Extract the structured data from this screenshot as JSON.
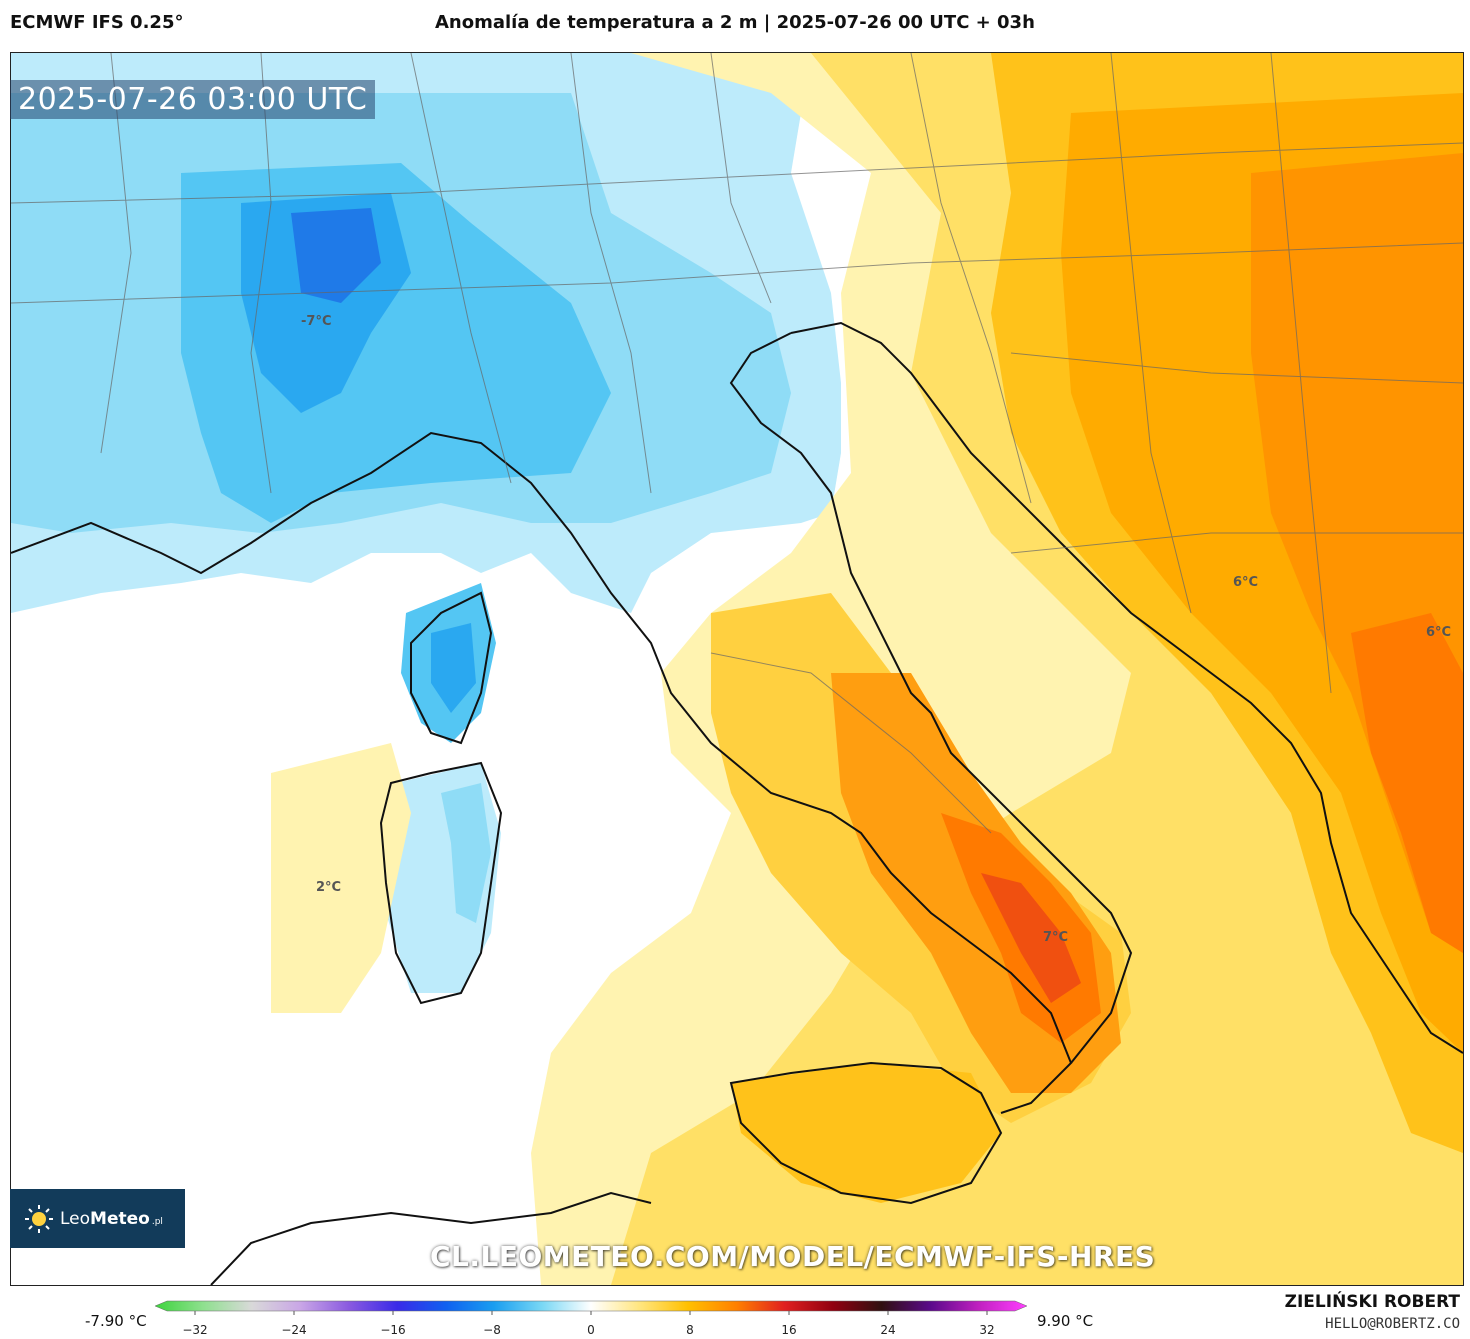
{
  "header": {
    "model": "ECMWF IFS 0.25°",
    "title": "Anomalía de temperatura a 2 m | 2025-07-26 00 UTC + 03h"
  },
  "map": {
    "valid_time": "2025-07-26 03:00 UTC",
    "labels": [
      "-7°C",
      "2°C",
      "6°C",
      "6°C",
      "7°C"
    ],
    "watermark": "CL.LEOMETEO.COM/MODEL/ECMWF-IFS-HRES",
    "logo": {
      "brand_light": "Leo",
      "brand_bold": "Meteo",
      "suffix": ".pl"
    }
  },
  "legend": {
    "min_label": "-7.90 °C",
    "max_label": "9.90 °C",
    "ticks": [
      "−32",
      "−24",
      "−16",
      "−8",
      "0",
      "8",
      "16",
      "24",
      "32"
    ],
    "colors": [
      "#3dd43d",
      "#8fe08f",
      "#d9d9d9",
      "#c9a6e6",
      "#8a5ae0",
      "#3a2ae8",
      "#1060f0",
      "#1a9ef0",
      "#7ad8f5",
      "#ffffff",
      "#ffe680",
      "#ffc000",
      "#ff8000",
      "#e02020",
      "#900010",
      "#301010",
      "#5a0a8a",
      "#c020c0",
      "#ff40ff"
    ]
  },
  "footer": {
    "author": "ZIELIŃSKI ROBERT",
    "email": "HELLO@ROBERTZ.CO"
  }
}
